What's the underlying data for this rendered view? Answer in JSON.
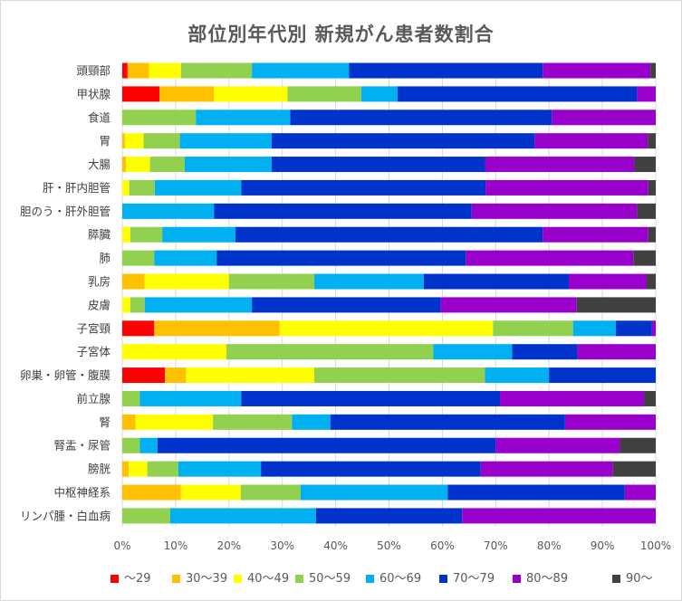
{
  "chart_data": {
    "type": "bar",
    "orientation": "horizontal",
    "stacked": "percent",
    "title": "部位別年代別 新規がん患者数割合",
    "xlim": [
      0,
      100
    ],
    "x_ticks": [
      "0%",
      "10%",
      "20%",
      "30%",
      "40%",
      "50%",
      "60%",
      "70%",
      "80%",
      "90%",
      "100%"
    ],
    "legend_position": "bottom",
    "grid": true,
    "categories": [
      "頭頸部",
      "甲状腺",
      "食道",
      "胃",
      "大腸",
      "肝・肝内胆管",
      "胆のう・肝外胆管",
      "膵臓",
      "肺",
      "乳房",
      "皮膚",
      "子宮頸",
      "子宮体",
      "卵巣・卵管・腹膜",
      "前立腺",
      "腎",
      "腎盂・尿管",
      "膀胱",
      "中枢神経系",
      "リンパ腫・白血病"
    ],
    "series": [
      {
        "name": "～29",
        "color": "#ff0000",
        "values": [
          1.0,
          7.0,
          0,
          0,
          0,
          0,
          0,
          0,
          0,
          0,
          0,
          6.0,
          0,
          8.0,
          0,
          0,
          0,
          0,
          0,
          0
        ]
      },
      {
        "name": "30～39",
        "color": "#ffc000",
        "values": [
          4.0,
          10.2,
          0,
          0.5,
          0.7,
          0,
          0,
          0,
          0,
          4.2,
          0,
          23.5,
          0,
          4.0,
          0,
          2.5,
          0,
          1.2,
          11.0,
          0
        ]
      },
      {
        "name": "40～49",
        "color": "#ffff00",
        "values": [
          6.0,
          13.8,
          0,
          3.5,
          4.5,
          1.3,
          0,
          1.5,
          0,
          15.8,
          1.5,
          40.0,
          19.5,
          24.0,
          0,
          14.5,
          0,
          3.5,
          11.2,
          0
        ]
      },
      {
        "name": "50～59",
        "color": "#92d050",
        "values": [
          13.3,
          13.8,
          13.8,
          6.8,
          6.5,
          4.8,
          0,
          6.0,
          6.0,
          16.0,
          2.7,
          15.0,
          38.8,
          32.0,
          3.3,
          14.8,
          3.3,
          5.8,
          11.2,
          9.0
        ]
      },
      {
        "name": "60～69",
        "color": "#00b0f0",
        "values": [
          18.2,
          6.8,
          17.7,
          17.2,
          16.3,
          16.2,
          17.2,
          13.7,
          11.7,
          20.5,
          20.1,
          8.0,
          14.8,
          12.0,
          19.0,
          7.2,
          3.3,
          15.5,
          27.6,
          27.3
        ]
      },
      {
        "name": "70～79",
        "color": "#0033cc",
        "values": [
          36.3,
          44.9,
          49.0,
          49.3,
          40.0,
          45.8,
          48.3,
          57.6,
          46.7,
          27.2,
          35.4,
          6.8,
          12.2,
          20.0,
          48.5,
          44.0,
          63.4,
          41.2,
          33.2,
          27.4
        ]
      },
      {
        "name": "80～89",
        "color": "#9900cc",
        "values": [
          20.2,
          3.5,
          19.5,
          21.2,
          28.0,
          30.5,
          31.0,
          19.8,
          31.4,
          14.6,
          25.5,
          0.7,
          14.7,
          0,
          27.0,
          17.0,
          23.3,
          24.8,
          5.8,
          36.3
        ]
      },
      {
        "name": "90～",
        "color": "#404040",
        "values": [
          1.0,
          0,
          0,
          1.5,
          4.0,
          1.4,
          3.5,
          1.4,
          4.2,
          1.7,
          14.8,
          0,
          0,
          0,
          2.2,
          0,
          6.7,
          8.0,
          0,
          0
        ]
      }
    ]
  }
}
